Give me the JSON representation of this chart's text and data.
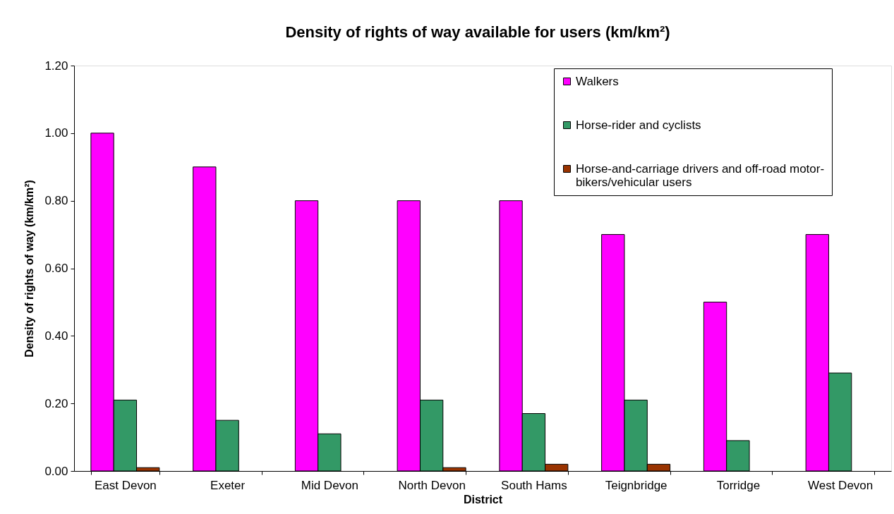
{
  "chart_data": {
    "type": "bar",
    "title": "Density of rights of way available for users (km/km²)",
    "xlabel": "District",
    "ylabel": "Density of rights of way (km/km²)",
    "categories": [
      "East Devon",
      "Exeter",
      "Mid Devon",
      "North Devon",
      "South Hams",
      "Teignbridge",
      "Torridge",
      "West Devon"
    ],
    "series": [
      {
        "name": "Walkers",
        "color": "#ff00ff",
        "values": [
          1.0,
          0.9,
          0.8,
          0.8,
          0.8,
          0.7,
          0.5,
          0.7
        ]
      },
      {
        "name": "Horse-rider and cyclists",
        "color": "#339966",
        "values": [
          0.21,
          0.15,
          0.11,
          0.21,
          0.17,
          0.21,
          0.09,
          0.29
        ]
      },
      {
        "name": "Horse-and-carriage drivers and off-road motor-bikers/vehicular users",
        "color": "#993300",
        "values": [
          0.01,
          null,
          null,
          0.01,
          0.02,
          0.02,
          null,
          null
        ]
      }
    ],
    "ylim": [
      0,
      1.2
    ],
    "yticks": [
      {
        "value": 0,
        "label": "0.00"
      },
      {
        "value": 0.2,
        "label": "0.20"
      },
      {
        "value": 0.4,
        "label": "0.40"
      },
      {
        "value": 0.6,
        "label": "0.60"
      },
      {
        "value": 0.8,
        "label": "0.80"
      },
      {
        "value": 1.0,
        "label": "1.00"
      },
      {
        "value": 1.2,
        "label": "1.20"
      }
    ],
    "grid": false,
    "legend": "top right"
  }
}
